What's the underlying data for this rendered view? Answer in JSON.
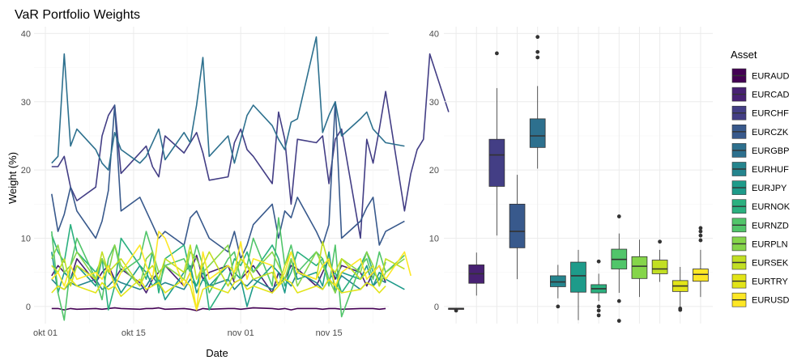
{
  "chart_data": {
    "type": "line",
    "title": "VaR Portfolio Weights",
    "xlabel": "Date",
    "ylabel": "Weight (%)",
    "ylim": [
      -2.5,
      41
    ],
    "yticks": [
      0,
      10,
      20,
      30,
      40
    ],
    "x_ticks": [
      {
        "label": "okt 01",
        "day": 1
      },
      {
        "label": "okt 15",
        "day": 15
      },
      {
        "label": "nov 01",
        "day": 32
      },
      {
        "label": "nov 15",
        "day": 46
      }
    ],
    "x_range_days": [
      -0.8,
      55.5
    ],
    "legend_title": "Asset",
    "legend_position": "right",
    "grid": true,
    "colors": {
      "EURAUD": "#440154",
      "EURCAD": "#482173",
      "EURCHF": "#433E85",
      "EURCZK": "#38598C",
      "EURGBP": "#2D708E",
      "EURHUF": "#25858E",
      "EURJPY": "#1E9B8A",
      "EURNOK": "#2BB07F",
      "EURNZD": "#51C56A",
      "EURPLN": "#85D54A",
      "EURSEK": "#C2DF23",
      "EURTRY": "#E2E418",
      "EURUSD": "#FDE725"
    },
    "series": [
      {
        "name": "EURAUD",
        "values": [
          -0.3,
          -0.3,
          -0.5,
          -0.3,
          -0.4,
          -0.3,
          -0.4,
          -0.3,
          -0.2,
          -0.3,
          -0.4,
          -0.3,
          -0.3,
          -0.2,
          -0.4,
          -0.3,
          -0.4,
          -0.6,
          -0.3,
          -0.4,
          -0.3,
          -0.3,
          -0.4,
          -0.3,
          -0.2,
          -0.3,
          -0.4,
          -0.3,
          -0.5,
          -0.3,
          -0.3,
          -0.4,
          -0.3,
          -0.3,
          -0.4,
          -0.3,
          -0.3,
          -0.3,
          -0.4,
          -0.3
        ]
      },
      {
        "name": "EURCAD",
        "values": [
          4.5,
          6,
          5,
          4,
          7,
          3.5,
          5,
          6,
          4,
          5.5,
          3.5,
          2,
          4,
          5,
          6,
          3,
          5,
          7.5,
          4,
          5,
          6,
          3.5,
          4,
          5,
          6,
          2,
          5,
          4,
          6,
          5.5,
          3,
          5,
          7,
          4,
          6,
          5,
          3,
          5,
          6,
          3.5
        ]
      },
      {
        "name": "EURCHF",
        "values": [
          20.5,
          20.5,
          22,
          17.5,
          15.5,
          17.5,
          25,
          28,
          29.5,
          19.5,
          22.5,
          23.5,
          20.5,
          19,
          25,
          22.5,
          24,
          25.5,
          22.5,
          18.5,
          19,
          24,
          26,
          23,
          22,
          18,
          28.5,
          24.5,
          15,
          24.5,
          24,
          25,
          18,
          24.5,
          26,
          10,
          24.5,
          21,
          26,
          31.5,
          14,
          19.5,
          23,
          24.5,
          37,
          28.5
        ]
      },
      {
        "name": "EURCZK",
        "values": [
          16.5,
          11,
          13.5,
          17.5,
          14,
          10,
          12.5,
          17,
          29.5,
          14,
          16,
          14,
          12,
          10,
          11,
          9,
          13,
          14,
          12,
          10,
          8,
          11,
          7,
          9,
          12,
          15,
          10,
          14,
          13,
          16,
          11,
          9,
          12,
          30,
          10,
          12.5,
          14.5,
          16,
          9,
          11,
          12.5
        ]
      },
      {
        "name": "EURGBP",
        "values": [
          21,
          22,
          37,
          23.5,
          26,
          23,
          21,
          20,
          25.5,
          23,
          21,
          22,
          24,
          26,
          21.5,
          25.5,
          24,
          29.5,
          36.5,
          22,
          25,
          21,
          24.5,
          28,
          29.5,
          26.5,
          24.5,
          23,
          27,
          27.5,
          39.5,
          25.5,
          28,
          30,
          25,
          27.5,
          28.5,
          26,
          25,
          24,
          23.5
        ]
      },
      {
        "name": "EURHUF",
        "values": [
          4,
          3,
          2.5,
          3.5,
          3,
          4,
          2.5,
          3,
          4,
          3.5,
          2.5,
          3,
          4.5,
          3,
          3.5,
          2.5,
          4,
          3,
          5,
          3,
          4,
          2.5,
          3.5,
          3,
          4,
          2.5,
          3.5,
          4,
          3,
          5,
          3.5,
          2.5,
          4,
          3,
          4.5,
          2.5,
          3.5,
          3,
          4,
          3.5
        ]
      },
      {
        "name": "EURJPY",
        "values": [
          8,
          2,
          5,
          4,
          6,
          3,
          7,
          5,
          4,
          2,
          6,
          5,
          3,
          4,
          1,
          5,
          6,
          2,
          4,
          3,
          6,
          5,
          4,
          0,
          3,
          6,
          5,
          2,
          7,
          4,
          5,
          3,
          8,
          2,
          5,
          4,
          6,
          3,
          5,
          4,
          2.5
        ]
      },
      {
        "name": "EURNOK",
        "values": [
          10.5,
          8,
          6.5,
          12,
          8,
          5,
          7,
          -0.5,
          3,
          10,
          6,
          4,
          8,
          2,
          7,
          9,
          5,
          3,
          6,
          -0.5,
          4,
          7,
          6,
          8,
          5,
          9,
          7,
          3,
          5,
          8,
          6,
          7,
          4,
          5,
          2,
          6,
          8,
          5,
          4,
          6.5
        ]
      },
      {
        "name": "EURNZD",
        "values": [
          11,
          2,
          -2,
          6,
          10,
          4,
          1,
          7,
          9,
          5,
          7,
          11,
          8,
          3,
          6,
          7,
          5,
          9,
          6,
          2,
          7,
          8,
          4,
          6,
          10,
          3,
          13,
          6,
          9,
          5,
          8,
          7,
          3,
          9,
          -1.5,
          6,
          7,
          4,
          8,
          5,
          7.5
        ]
      },
      {
        "name": "EURPLN",
        "values": [
          7,
          9,
          5,
          6,
          8,
          4,
          7,
          5,
          9,
          6,
          3,
          7,
          8,
          5,
          6,
          4,
          8,
          7,
          5,
          6,
          9,
          4,
          7,
          6,
          5,
          8,
          6,
          4,
          7,
          3,
          8,
          6,
          4,
          2,
          7,
          5,
          8,
          6,
          3,
          5,
          7
        ]
      },
      {
        "name": "EURSEK",
        "values": [
          6,
          5,
          7,
          3,
          6,
          4,
          8,
          5,
          6,
          7,
          3,
          5,
          6,
          4,
          7,
          5,
          9,
          4,
          6,
          8,
          3,
          5,
          7,
          6,
          4,
          5,
          3,
          6,
          8,
          5,
          4,
          9.5,
          6,
          5,
          7,
          4,
          5,
          6,
          3,
          7,
          5.5
        ]
      },
      {
        "name": "EURTRY",
        "values": [
          2,
          3,
          2.5,
          4,
          3,
          2,
          3.5,
          2.5,
          3,
          1.5,
          4,
          2.5,
          3,
          3.5,
          2,
          4,
          3,
          -0.5,
          2.5,
          3,
          2,
          3.5,
          4,
          2.5,
          3,
          2,
          3,
          4,
          3.5,
          2,
          3,
          2.5,
          4,
          3,
          2,
          2.5,
          3.5,
          3,
          2,
          3
        ]
      },
      {
        "name": "EURUSD",
        "values": [
          4,
          5,
          3,
          6,
          4,
          5,
          4,
          6,
          3,
          5,
          9,
          6,
          4,
          11,
          10,
          3,
          5,
          -0.5,
          8,
          4,
          6,
          5,
          9.5,
          4,
          7,
          6,
          3,
          5,
          8,
          5,
          4,
          6,
          7,
          3,
          5,
          7,
          4,
          5,
          6,
          4,
          8,
          4.5
        ]
      }
    ],
    "boxplot": {
      "type": "boxplot",
      "ylim": [
        -2.5,
        41
      ],
      "yticks": [
        0,
        10,
        20,
        30,
        40
      ],
      "boxes": [
        {
          "name": "EURAUD",
          "q1": -0.35,
          "median": -0.3,
          "q3": -0.25,
          "whisker_low": -0.45,
          "whisker_high": -0.2,
          "outliers": [
            -0.6
          ]
        },
        {
          "name": "EURCAD",
          "q1": 3.4,
          "median": 4.8,
          "q3": 6.1,
          "whisker_low": 1.6,
          "whisker_high": 7.9,
          "outliers": []
        },
        {
          "name": "EURCHF",
          "q1": 17.6,
          "median": 22.2,
          "q3": 24.5,
          "whisker_low": 10.4,
          "whisker_high": 32,
          "outliers": [
            37.1
          ]
        },
        {
          "name": "EURCZK",
          "q1": 8.6,
          "median": 11,
          "q3": 15,
          "whisker_low": 4,
          "whisker_high": 19.3,
          "outliers": []
        },
        {
          "name": "EURGBP",
          "q1": 23.3,
          "median": 25,
          "q3": 27.5,
          "whisker_low": 20.2,
          "whisker_high": 32.3,
          "outliers": [
            36.5,
            37.3,
            39.5
          ]
        },
        {
          "name": "EURHUF",
          "q1": 2.9,
          "median": 3.6,
          "q3": 4.5,
          "whisker_low": 1.2,
          "whisker_high": 6.1,
          "outliers": [
            0
          ]
        },
        {
          "name": "EURJPY",
          "q1": 2.1,
          "median": 4.5,
          "q3": 6.5,
          "whisker_low": -2,
          "whisker_high": 8.3,
          "outliers": []
        },
        {
          "name": "EURNOK",
          "q1": 2,
          "median": 2.6,
          "q3": 3.2,
          "whisker_low": 0.8,
          "whisker_high": 4.8,
          "outliers": [
            6.6,
            0,
            -0.6,
            -1.3
          ]
        },
        {
          "name": "EURNZD",
          "q1": 5.5,
          "median": 6.9,
          "q3": 8.4,
          "whisker_low": 2,
          "whisker_high": 10.7,
          "outliers": [
            13.2,
            0.8,
            -2.1
          ]
        },
        {
          "name": "EURPLN",
          "q1": 4.1,
          "median": 5.9,
          "q3": 7.3,
          "whisker_low": 1.4,
          "whisker_high": 9.8,
          "outliers": []
        },
        {
          "name": "EURSEK",
          "q1": 4.8,
          "median": 5.5,
          "q3": 6.8,
          "whisker_low": 3.6,
          "whisker_high": 8.3,
          "outliers": [
            9.5
          ]
        },
        {
          "name": "EURTRY",
          "q1": 2.2,
          "median": 3,
          "q3": 3.8,
          "whisker_low": 0,
          "whisker_high": 5.8,
          "outliers": [
            -0.3,
            -0.5
          ]
        },
        {
          "name": "EURUSD",
          "q1": 3.7,
          "median": 4.7,
          "q3": 5.5,
          "whisker_low": 1.4,
          "whisker_high": 8.3,
          "outliers": [
            9.7,
            10.4,
            11,
            11.5
          ]
        }
      ]
    }
  }
}
